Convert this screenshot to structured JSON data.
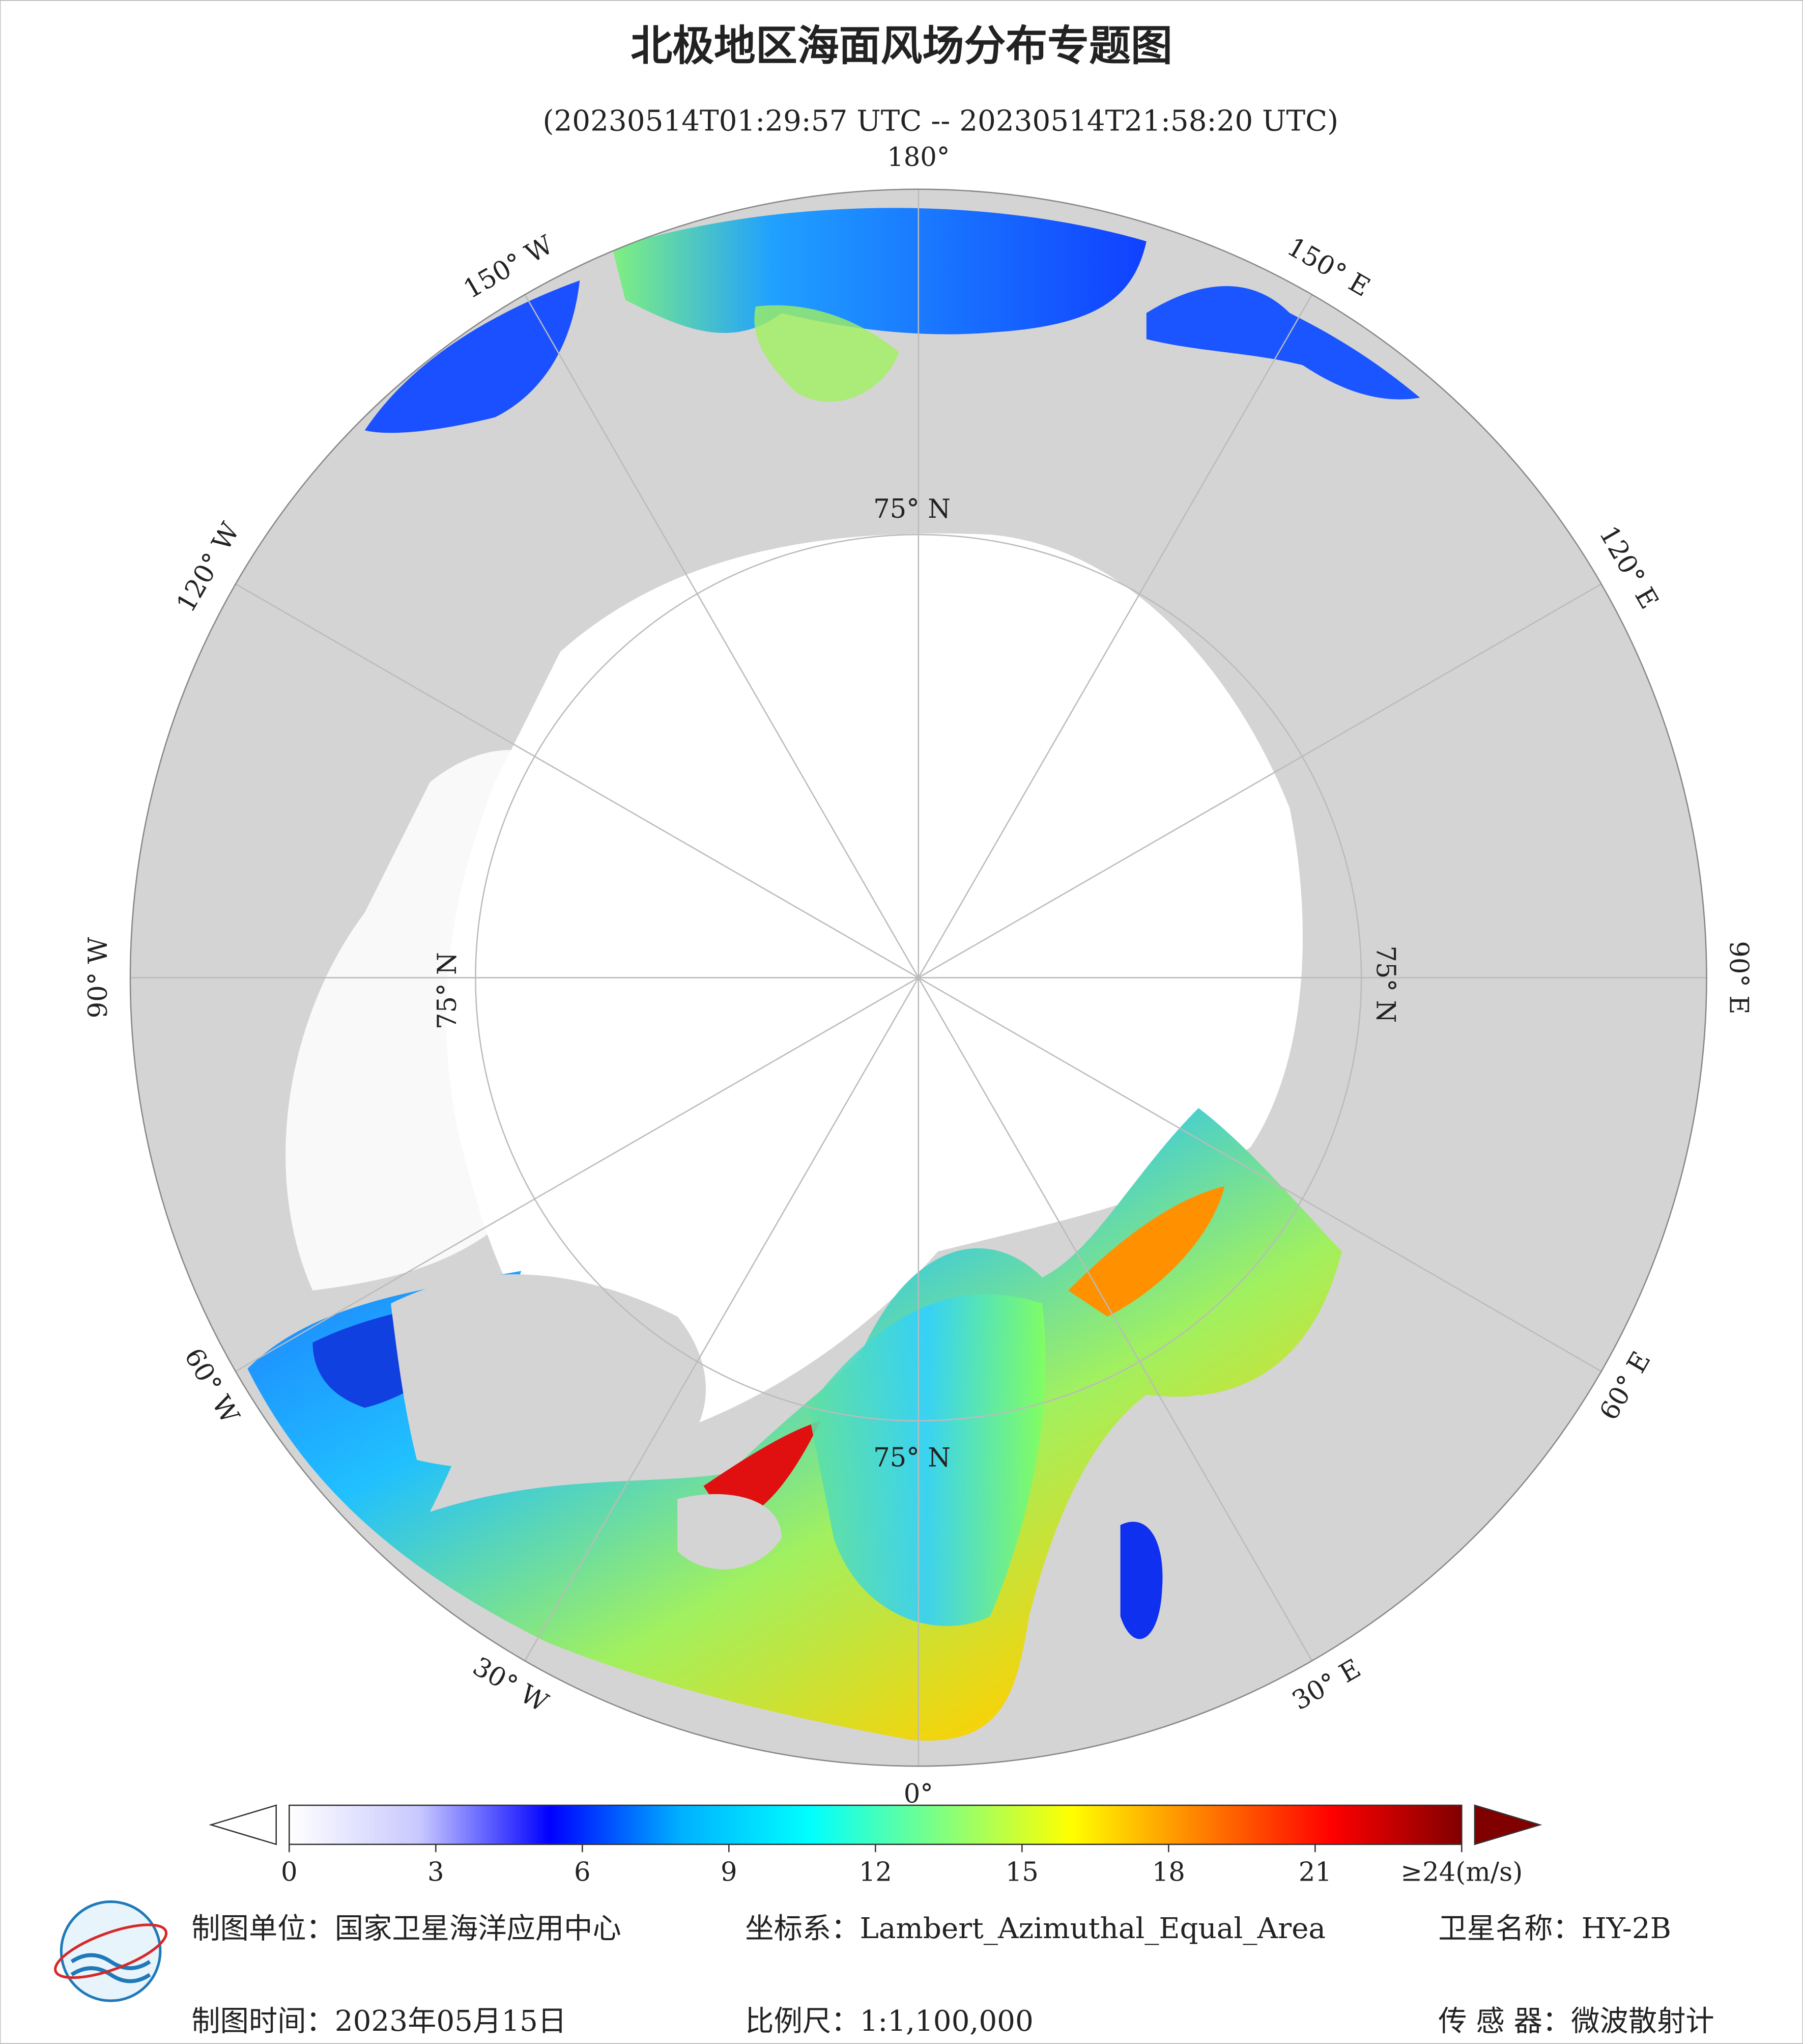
{
  "header": {
    "title": "北极地区海面风场分布专题图",
    "subtitle": "(20230514T01:29:57 UTC -- 20230514T21:58:20 UTC)"
  },
  "map": {
    "meridian_labels": [
      "180°",
      "150° E",
      "120° E",
      "90° E",
      "60° E",
      "30° E",
      "0°",
      "30° W",
      "60° W",
      "90° W",
      "120° W",
      "150° W"
    ],
    "parallel_labels": [
      "75° N",
      "75° N",
      "75° N",
      "75° N"
    ]
  },
  "colorbar": {
    "range": [
      0,
      24
    ],
    "ticks": [
      0,
      3,
      6,
      9,
      12,
      15,
      18,
      21,
      {
        "value": 24,
        "label": "≥24(m/s)"
      }
    ],
    "colors": [
      "#ffffff",
      "#c8c8ff",
      "#0000ff",
      "#00b0ff",
      "#00ffff",
      "#80ff80",
      "#ffff00",
      "#ff8000",
      "#ff0000",
      "#800000"
    ]
  },
  "footer": {
    "unit": "制图单位：国家卫星海洋应用中心",
    "crs": "坐标系：Lambert_Azimuthal_Equal_Area",
    "satellite": "卫星名称：HY-2B",
    "date": "制图时间：2023年05月15日",
    "scale": "比例尺：1:1,100,000",
    "sensor": "传 感 器：微波散射计"
  }
}
